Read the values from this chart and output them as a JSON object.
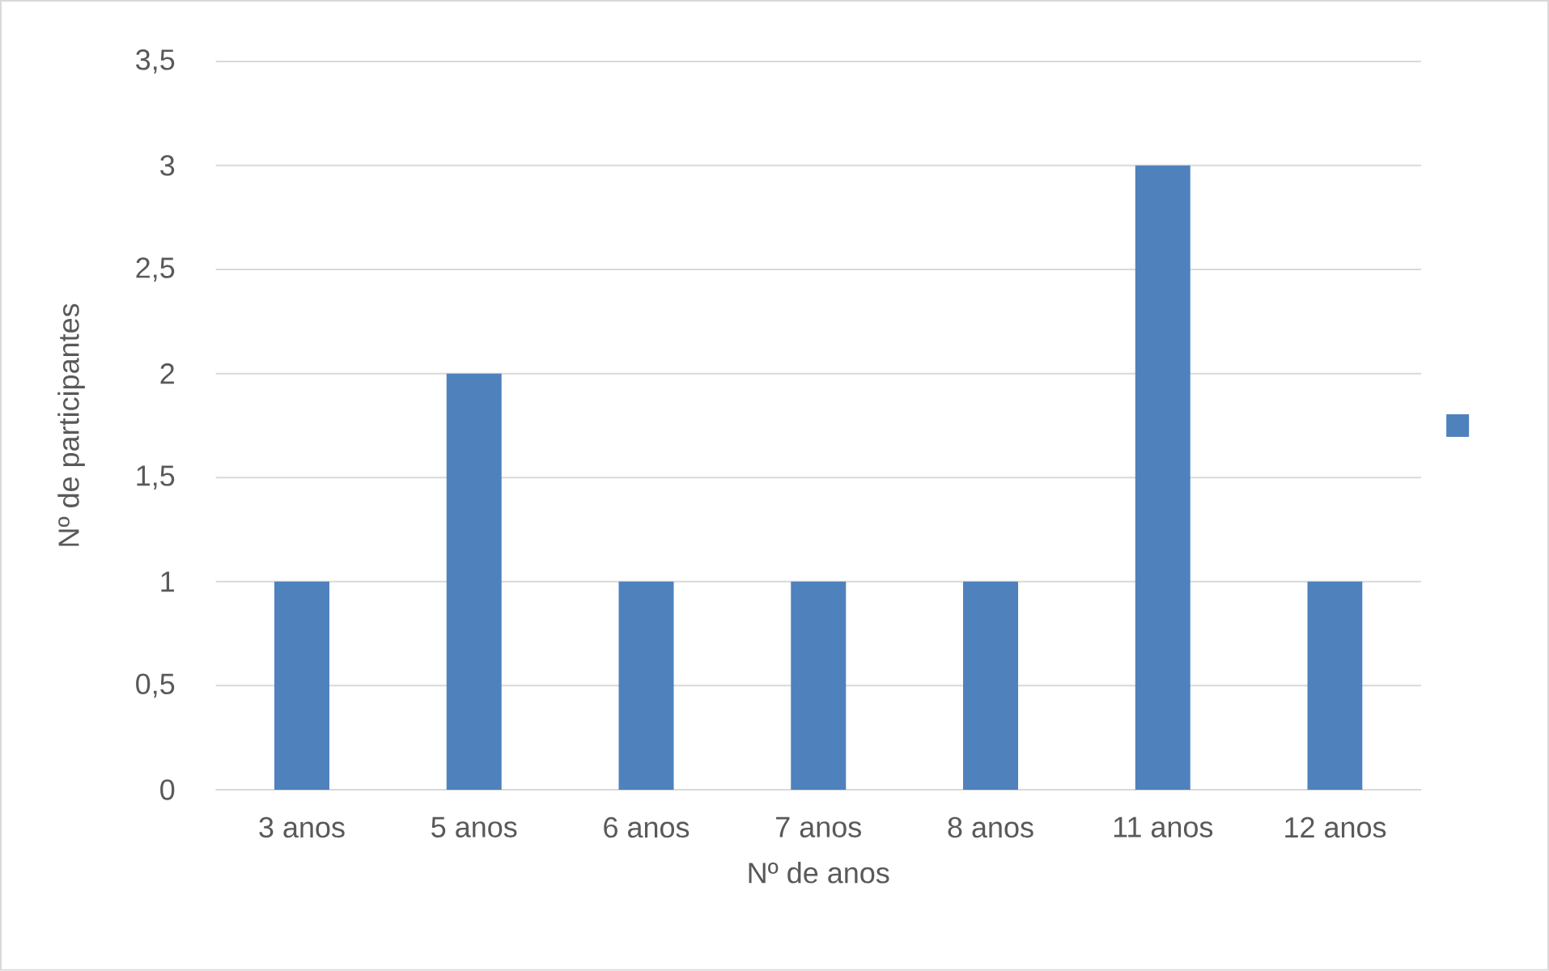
{
  "chart_data": {
    "type": "bar",
    "xlabel": "Nº de anos",
    "ylabel": "Nº de participantes",
    "categories": [
      "3 anos",
      "5 anos",
      "6 anos",
      "7 anos",
      "8 anos",
      "11 anos",
      "12 anos"
    ],
    "series": [
      {
        "color": "#4f81bd",
        "values": [
          1,
          2,
          1,
          1,
          1,
          3,
          1
        ]
      }
    ],
    "ylim": [
      0,
      3.5
    ],
    "yticks": [
      0,
      {
        "value": 0.5,
        "label": "0,5"
      },
      1,
      {
        "value": 1.5,
        "label": "1,5"
      },
      2,
      {
        "value": 2.5,
        "label": "2,5"
      },
      3,
      {
        "value": 3.5,
        "label": "3,5"
      }
    ],
    "grid": "y"
  }
}
